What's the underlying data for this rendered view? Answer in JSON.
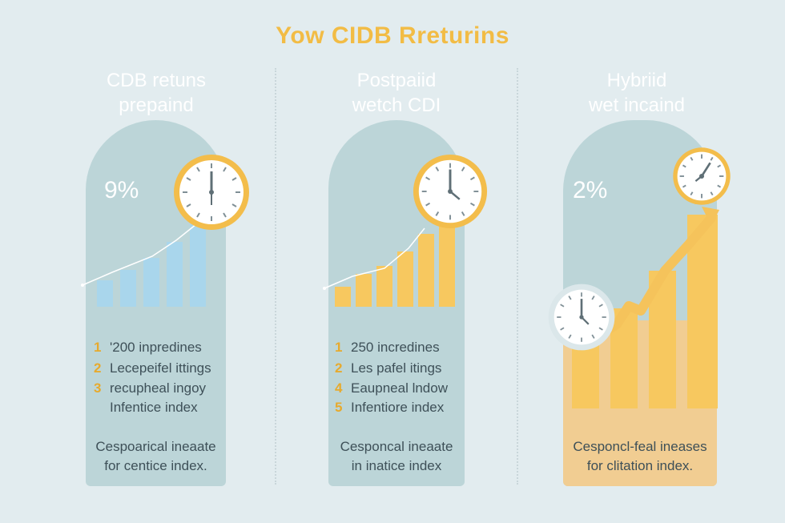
{
  "title": "Yow CIDB Rreturins",
  "columns": [
    {
      "title_line1": "CDB retuns",
      "title_line2": "prepaind",
      "percent": "9%",
      "list": [
        {
          "num": "1",
          "text": "'200 inpredines"
        },
        {
          "num": "2",
          "text": "Lecepeifel ittings"
        },
        {
          "num": "3",
          "text": "recupheal ingoy"
        },
        {
          "num": "",
          "text": "Infentice index"
        }
      ],
      "footer_line1": "Cespoarical ineaate",
      "footer_line2": "for centice index."
    },
    {
      "title_line1": "Postpaiid",
      "title_line2": "wetch CDI",
      "percent": "",
      "list": [
        {
          "num": "1",
          "text": "250 incredines"
        },
        {
          "num": "2",
          "text": "Les pafel itings"
        },
        {
          "num": "4",
          "text": "Eaupneal lndow"
        },
        {
          "num": "5",
          "text": "Infentiore index"
        }
      ],
      "footer_line1": "Cesponcal ineaate",
      "footer_line2": "in inatice index"
    },
    {
      "title_line1": "Hybriid",
      "title_line2": "wet incaind",
      "percent": "2%",
      "list": [],
      "footer_line1": "Cesponcl-feal ineases",
      "footer_line2": "for clitation index."
    }
  ],
  "colors": {
    "title": "#f2bc45",
    "panel_blue": "#bcd5d8",
    "panel_gold": "#f1cd92",
    "bar_blue": "#a9d6ec",
    "bar_gold": "#f7c85f",
    "clock_ring": "#f3bd4b"
  },
  "icons": [
    "clock-icon",
    "trend-line",
    "growth-arrow"
  ]
}
